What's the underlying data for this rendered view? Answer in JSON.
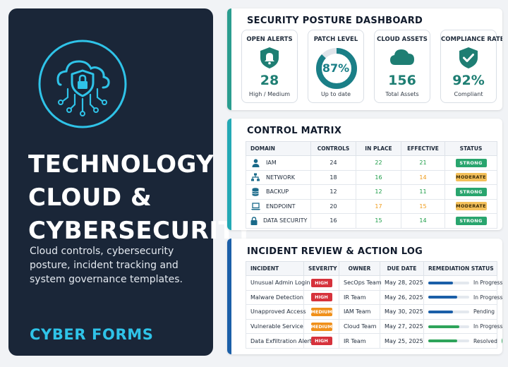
{
  "cover": {
    "title_lines": [
      "TECHNOLOGY",
      "CLOUD &",
      "CYBERSECURITY"
    ],
    "description": "Cloud controls, cybersecurity posture, incident tracking and system governance templates.",
    "brand": "CYBER FORMS",
    "icon": "cloud-shield-lock-icon"
  },
  "dashboard": {
    "title": "SECURITY POSTURE DASHBOARD",
    "tiles": [
      {
        "label": "OPEN ALERTS",
        "value": "28",
        "sub": "High / Medium",
        "icon": "bell-shield-icon"
      },
      {
        "label": "PATCH LEVEL",
        "value": "87%",
        "sub": "Up to date",
        "icon": "progress-ring",
        "fraction": 0.87
      },
      {
        "label": "CLOUD ASSETS",
        "value": "156",
        "sub": "Total Assets",
        "icon": "cloud-icon"
      },
      {
        "label": "COMPLIANCE RATE",
        "value": "92%",
        "sub": "Compliant",
        "icon": "shield-check-icon"
      }
    ],
    "colors": {
      "accent": "#2a9d8f",
      "value": "#1e7e73"
    }
  },
  "matrix": {
    "title": "CONTROL MATRIX",
    "headers": [
      "DOMAIN",
      "CONTROLS",
      "IN PLACE",
      "EFFECTIVE",
      "STATUS"
    ],
    "rows": [
      {
        "domain": "IAM",
        "icon": "user-icon",
        "controls": "24",
        "in_place": "22",
        "effective": "21",
        "status": "STRONG"
      },
      {
        "domain": "NETWORK",
        "icon": "network-icon",
        "controls": "18",
        "in_place": "16",
        "effective": "14",
        "status": "MODERATE"
      },
      {
        "domain": "BACKUP",
        "icon": "database-icon",
        "controls": "12",
        "in_place": "12",
        "effective": "11",
        "status": "STRONG"
      },
      {
        "domain": "ENDPOINT",
        "icon": "laptop-icon",
        "controls": "20",
        "in_place": "17",
        "effective": "15",
        "status": "MODERATE"
      },
      {
        "domain": "DATA SECURITY",
        "icon": "lock-icon",
        "controls": "16",
        "in_place": "15",
        "effective": "14",
        "status": "STRONG"
      }
    ]
  },
  "incidents": {
    "title": "INCIDENT REVIEW & ACTION LOG",
    "headers": [
      "INCIDENT",
      "SEVERITY",
      "OWNER",
      "DUE DATE",
      "REMEDIATION STATUS"
    ],
    "rows": [
      {
        "incident": "Unusual Admin Login",
        "severity": "HIGH",
        "owner": "SecOps Team",
        "due": "May 28, 2025",
        "progress": 0.6,
        "status": "In Progress"
      },
      {
        "incident": "Malware Detection",
        "severity": "HIGH",
        "owner": "IR Team",
        "due": "May 26, 2025",
        "progress": 0.7,
        "status": "In Progress"
      },
      {
        "incident": "Unapproved Access",
        "severity": "MEDIUM",
        "owner": "IAM Team",
        "due": "May 30, 2025",
        "progress": 0.6,
        "status": "Pending"
      },
      {
        "incident": "Vulnerable Service",
        "severity": "MEDIUM",
        "owner": "Cloud Team",
        "due": "May 27, 2025",
        "progress": 0.75,
        "status": "In Progress"
      },
      {
        "incident": "Data Exfiltration Alert",
        "severity": "HIGH",
        "owner": "IR Team",
        "due": "May 25, 2025",
        "progress": 0.7,
        "status": "Resolved"
      }
    ]
  }
}
